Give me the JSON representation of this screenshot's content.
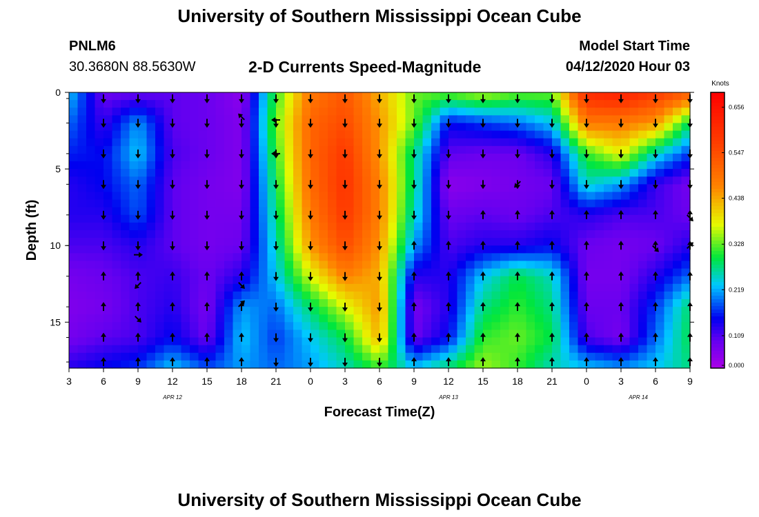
{
  "page": {
    "title_top": "University of Southern Mississippi Ocean Cube",
    "title_bottom": "University of Southern Mississippi Ocean Cube",
    "station_id": "PNLM6",
    "station_coords": "30.3680N 88.5630W",
    "subtitle": "2-D Currents Speed-Magnitude",
    "model_start_label": "Model Start Time",
    "model_start_value": "04/12/2020 Hour 03"
  },
  "chart_data": {
    "type": "heatmap",
    "title": "2-D Currents Speed-Magnitude",
    "xlabel": "Forecast Time(Z)",
    "ylabel": "Depth (ft)",
    "x_hours_since_start": [
      0,
      3,
      6,
      9,
      12,
      15,
      18,
      21,
      24,
      27,
      30,
      33,
      36,
      39,
      42,
      45,
      48,
      51,
      54
    ],
    "x_tick_labels": [
      "3",
      "6",
      "9",
      "12",
      "15",
      "18",
      "21",
      "0",
      "3",
      "6",
      "9",
      "12",
      "15",
      "18",
      "21",
      "0",
      "3",
      "6",
      "9"
    ],
    "y_tick_values": [
      0,
      5,
      10,
      15
    ],
    "y_tick_labels": [
      "0",
      "5",
      "10",
      "15"
    ],
    "xlim": [
      0,
      54
    ],
    "ylim": [
      0,
      18
    ],
    "date_labels": [
      {
        "text": "APR 12",
        "hours_since_start": 9
      },
      {
        "text": "APR 13",
        "hours_since_start": 33
      },
      {
        "text": "APR 14",
        "hours_since_start": 49.5
      }
    ],
    "colorbar": {
      "unit_label": "Knots",
      "tick_values": [
        0.0,
        0.109,
        0.219,
        0.328,
        0.438,
        0.547,
        0.656
      ],
      "tick_labels": [
        "0.000",
        "0.109",
        "0.219",
        "0.328",
        "0.438",
        "0.547",
        "0.656"
      ],
      "range": [
        0,
        0.66
      ]
    },
    "grid_times": [
      0,
      3,
      6,
      9,
      12,
      15,
      18,
      21,
      24,
      27,
      30,
      33,
      36,
      39,
      42,
      45,
      48,
      51,
      54
    ],
    "grid_depths": [
      0,
      2,
      4,
      6,
      8,
      10,
      12,
      14,
      16,
      18
    ],
    "speed_knots": [
      [
        0.2,
        0.06,
        0.06,
        0.07,
        0.06,
        0.03,
        0.28,
        0.45,
        0.5,
        0.4,
        0.3,
        0.3,
        0.33,
        0.3,
        0.3,
        0.58,
        0.6,
        0.55,
        0.5
      ],
      [
        0.16,
        0.09,
        0.18,
        0.07,
        0.06,
        0.04,
        0.3,
        0.48,
        0.52,
        0.42,
        0.3,
        0.12,
        0.14,
        0.16,
        0.2,
        0.45,
        0.45,
        0.42,
        0.25
      ],
      [
        0.13,
        0.12,
        0.2,
        0.08,
        0.06,
        0.04,
        0.28,
        0.48,
        0.55,
        0.42,
        0.24,
        0.07,
        0.06,
        0.06,
        0.1,
        0.28,
        0.35,
        0.22,
        0.14
      ],
      [
        0.1,
        0.12,
        0.16,
        0.07,
        0.05,
        0.04,
        0.26,
        0.47,
        0.56,
        0.44,
        0.24,
        0.03,
        0.04,
        0.05,
        0.06,
        0.22,
        0.18,
        0.09,
        0.05
      ],
      [
        0.1,
        0.1,
        0.15,
        0.07,
        0.05,
        0.05,
        0.24,
        0.45,
        0.55,
        0.44,
        0.22,
        0.06,
        0.07,
        0.06,
        0.08,
        0.1,
        0.08,
        0.08,
        0.06
      ],
      [
        0.08,
        0.08,
        0.1,
        0.07,
        0.05,
        0.06,
        0.22,
        0.42,
        0.52,
        0.42,
        0.18,
        0.08,
        0.1,
        0.1,
        0.12,
        0.06,
        0.05,
        0.06,
        0.1
      ],
      [
        0.05,
        0.06,
        0.08,
        0.09,
        0.06,
        0.1,
        0.2,
        0.34,
        0.44,
        0.4,
        0.1,
        0.1,
        0.2,
        0.26,
        0.22,
        0.05,
        0.05,
        0.1,
        0.16
      ],
      [
        0.04,
        0.05,
        0.08,
        0.1,
        0.05,
        0.18,
        0.16,
        0.25,
        0.34,
        0.42,
        0.05,
        0.1,
        0.24,
        0.28,
        0.24,
        0.06,
        0.06,
        0.14,
        0.25
      ],
      [
        0.05,
        0.07,
        0.08,
        0.12,
        0.06,
        0.2,
        0.14,
        0.2,
        0.26,
        0.4,
        0.06,
        0.12,
        0.28,
        0.3,
        0.26,
        0.08,
        0.05,
        0.16,
        0.26
      ],
      [
        0.1,
        0.12,
        0.14,
        0.2,
        0.15,
        0.18,
        0.16,
        0.18,
        0.22,
        0.28,
        0.2,
        0.25,
        0.32,
        0.28,
        0.22,
        0.2,
        0.18,
        0.2,
        0.24
      ]
    ],
    "vector_arrows": [
      {
        "t": 6,
        "d": 10.6,
        "dir": "E"
      },
      {
        "t": 15,
        "d": 1.6,
        "dir": "NW"
      },
      {
        "t": 18,
        "d": 1.8,
        "dir": "W"
      },
      {
        "t": 18,
        "d": 4.0,
        "dir": "W"
      },
      {
        "t": 15,
        "d": 12.6,
        "dir": "SE"
      },
      {
        "t": 15,
        "d": 13.8,
        "dir": "NE"
      },
      {
        "t": 6,
        "d": 12.6,
        "dir": "SW"
      },
      {
        "t": 6,
        "d": 14.8,
        "dir": "SE"
      },
      {
        "t": 39,
        "d": 6.0,
        "dir": "SW"
      },
      {
        "t": 51,
        "d": 10.2,
        "dir": "SE"
      },
      {
        "t": 54,
        "d": 8.2,
        "dir": "SE"
      },
      {
        "t": 54,
        "d": 10.0,
        "dir": "NE"
      }
    ]
  }
}
